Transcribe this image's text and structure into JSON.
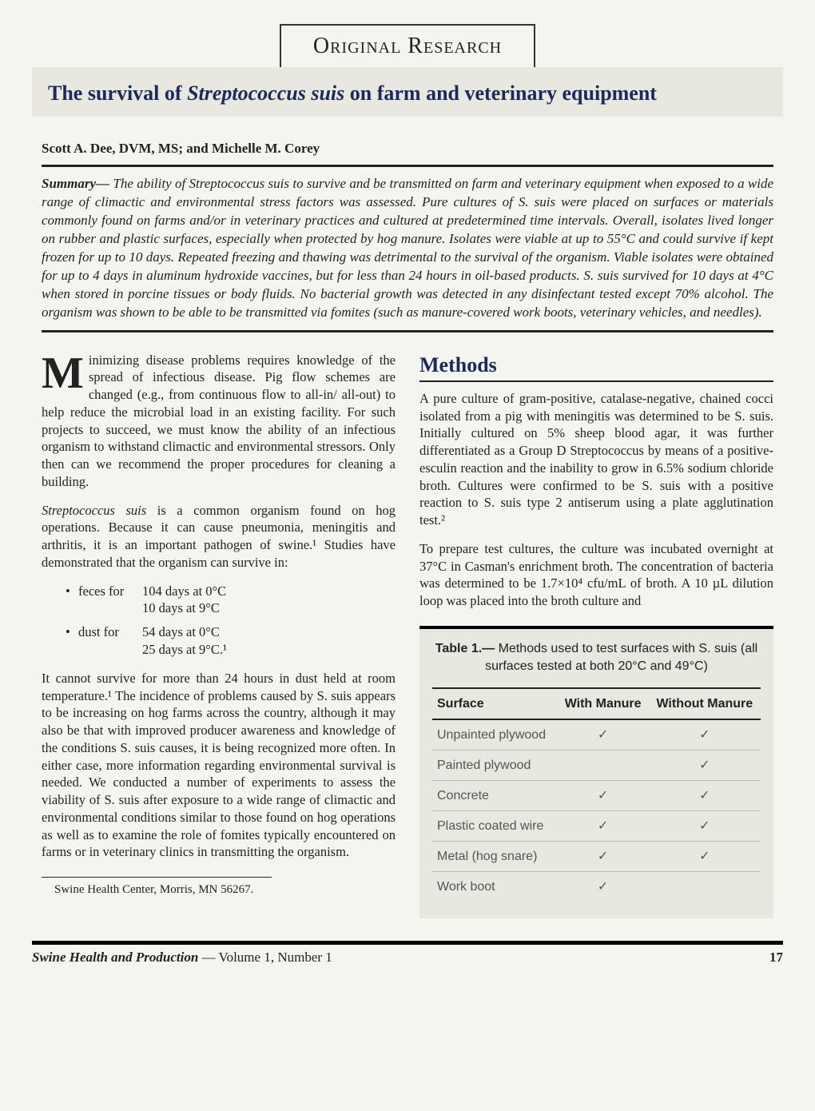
{
  "banner": "Original Research",
  "title_pre": "The survival of ",
  "title_ital": "Streptococcus suis",
  "title_post": " on farm and veterinary equipment",
  "authors": "Scott A. Dee, DVM, MS; and Michelle M. Corey",
  "summary_label": "Summary—",
  "summary_body": " The ability of Streptococcus suis to survive and be transmitted on farm and veterinary equipment when exposed to a wide range of climactic and environmental stress factors was assessed. Pure cultures of S. suis were placed on surfaces or materials commonly found on farms and/or in veterinary practices and cultured at predetermined time intervals. Overall, isolates lived longer on rubber and plastic surfaces, especially when protected by hog manure. Isolates were viable at up to 55°C and could survive if kept frozen for up to 10 days. Repeated freezing and thawing was detrimental to the survival of the organism. Viable isolates were obtained for up to 4 days in aluminum hydroxide vaccines, but for less than 24 hours in oil-based products. S. suis survived for 10 days at 4°C when stored in porcine tissues or body fluids. No bacterial growth was detected in any disinfectant tested except 70% alcohol. The organism was shown to be able to be transmitted via fomites (such as manure-covered work boots, veterinary vehicles, and needles).",
  "intro_dropcap": "M",
  "intro_p1": "inimizing disease problems requires knowledge of the spread of infectious disease. Pig flow schemes are changed (e.g., from continuous flow to all-in/ all-out) to help reduce the microbial load in an existing facility. For such projects to succeed, we must know the ability of an infectious organism to withstand climactic and environmental stressors. Only then can we recommend the proper procedures for cleaning a building.",
  "intro_p2_pre": "Streptococcus suis",
  "intro_p2_post": " is a common organism found on hog operations. Because it can cause pneumonia, meningitis and arthritis, it is an important pathogen of swine.¹ Studies have demonstrated that the organism can survive in:",
  "bullets": [
    {
      "key": "feces for",
      "lines": [
        "104 days at 0°C",
        "10 days at 9°C"
      ]
    },
    {
      "key": "dust for",
      "lines": [
        "54 days at 0°C",
        "25 days at 9°C.¹"
      ]
    }
  ],
  "intro_p3": "It cannot survive for more than 24 hours in dust held at room temperature.¹ The incidence of problems caused by S. suis appears to be increasing on hog farms across the country, although it may also be that with improved producer awareness and knowledge of the conditions S. suis causes, it is being recognized more often. In either case, more information regarding environmental survival is needed. We conducted a number of experiments to assess the viability of S. suis after exposure to a wide range of climactic and environmental conditions similar to those found on hog operations as well as to examine the role of fomites typically encountered on farms or in veterinary clinics in transmitting the organism.",
  "footnote": "Swine Health Center, Morris, MN 56267.",
  "methods_head": "Methods",
  "methods_p1": "A pure culture of gram-positive, catalase-negative, chained cocci isolated from a pig with meningitis was determined to be S. suis. Initially cultured on 5% sheep blood agar, it was further differentiated as a Group D Streptococcus by means of a positive-esculin reaction and the inability to grow in 6.5% sodium chloride broth. Cultures were confirmed to be S. suis with a positive reaction to S. suis type 2 antiserum using a plate agglutination test.²",
  "methods_p2": "To prepare test cultures, the culture was incubated overnight at 37°C in Casman's enrichment broth. The concentration of bacteria was determined to be 1.7×10⁴ cfu/mL of broth. A 10 µL dilution loop was placed into the broth culture and",
  "table": {
    "label": "Table 1.—",
    "caption_rest": " Methods used to test surfaces with S. suis (all surfaces tested at both 20°C and 49°C)",
    "headers": [
      "Surface",
      "With Manure",
      "Without Manure"
    ],
    "rows": [
      {
        "surface": "Unpainted plywood",
        "with": "✓",
        "without": "✓"
      },
      {
        "surface": "Painted plywood",
        "with": "",
        "without": "✓"
      },
      {
        "surface": "Concrete",
        "with": "✓",
        "without": "✓"
      },
      {
        "surface": "Plastic coated wire",
        "with": "✓",
        "without": "✓"
      },
      {
        "surface": "Metal (hog snare)",
        "with": "✓",
        "without": "✓"
      },
      {
        "surface": "Work boot",
        "with": "✓",
        "without": ""
      }
    ]
  },
  "footer": {
    "journal": "Swine Health and Production",
    "volume": " — Volume 1, Number 1",
    "page": "17"
  },
  "colors": {
    "title": "#1a2a5a",
    "page_bg": "#f5f5f0",
    "table_bg": "#e8e8e0"
  }
}
